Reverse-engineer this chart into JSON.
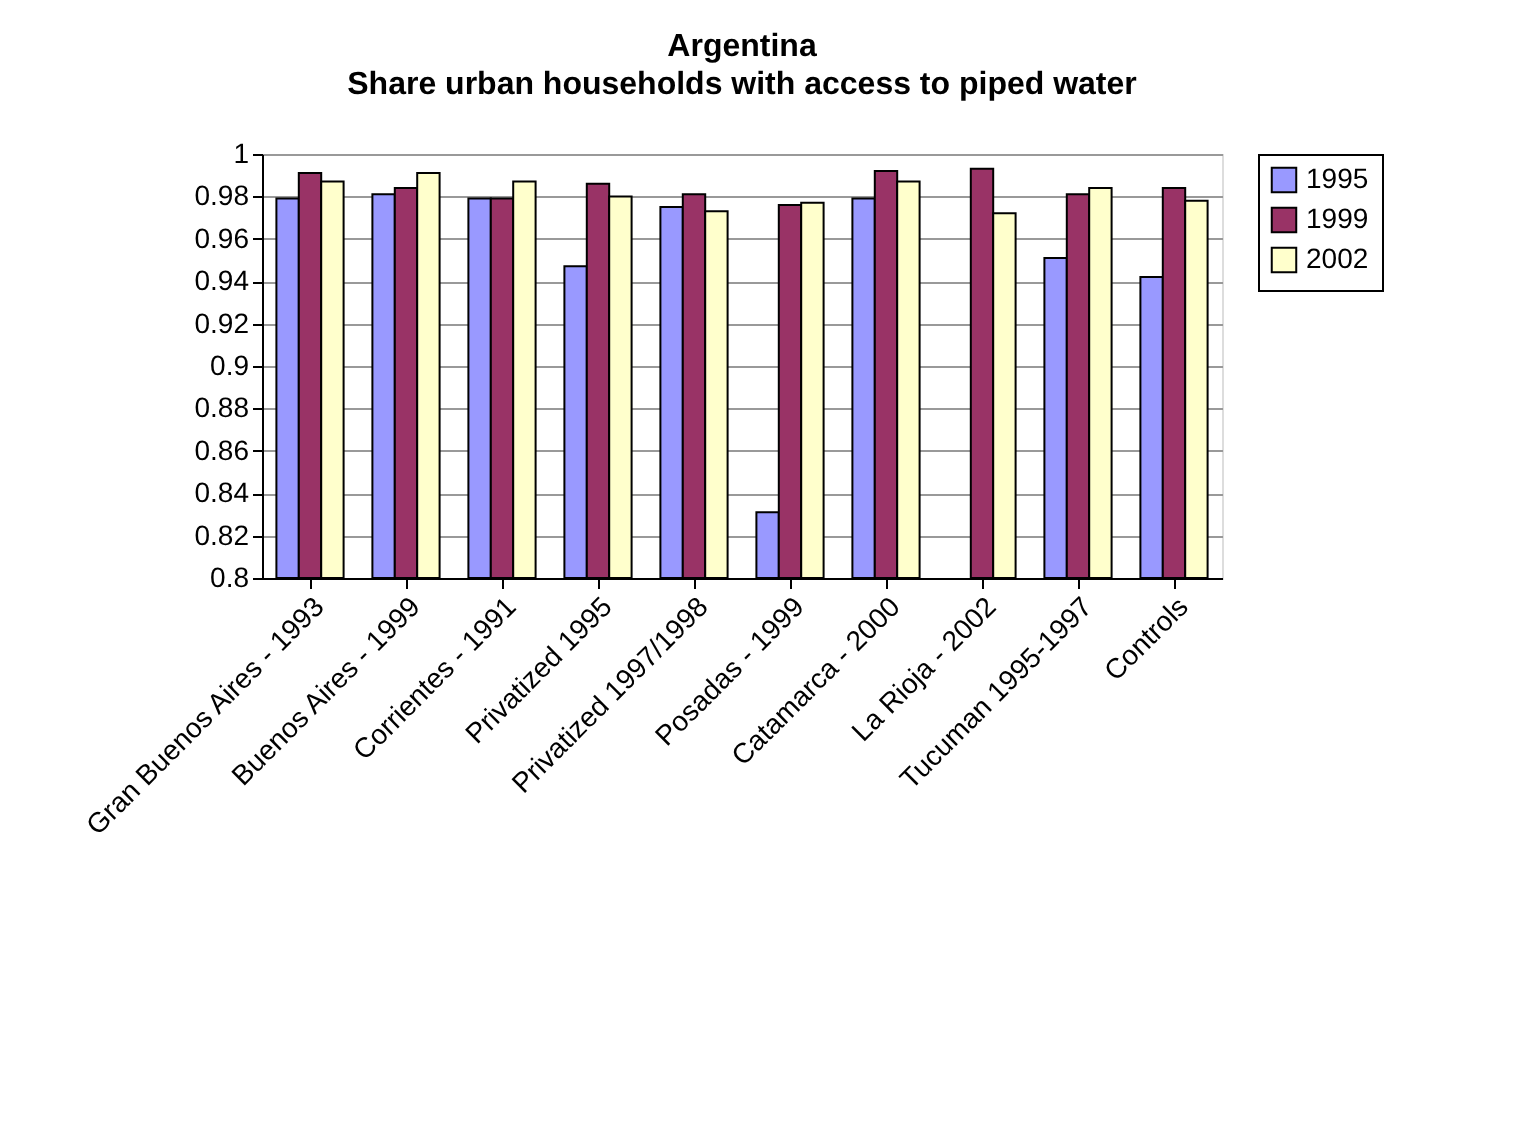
{
  "chart_data": {
    "type": "bar",
    "title": "Argentina",
    "subtitle": "Share urban households with access to piped water",
    "categories": [
      "Gran Buenos Aires - 1993",
      "Buenos Aires - 1999",
      "Corrientes - 1991",
      "Privatized 1995",
      "Privatized 1997/1998",
      "Posadas - 1999",
      "Catamarca - 2000",
      "La Rioja - 2002",
      "Tucuman 1995-1997",
      "Controls"
    ],
    "series": [
      {
        "name": "1995",
        "color": "#9999ff",
        "values": [
          0.979,
          0.981,
          0.979,
          0.947,
          0.975,
          0.831,
          0.979,
          null,
          0.951,
          0.942
        ]
      },
      {
        "name": "1999",
        "color": "#993366",
        "values": [
          0.991,
          0.984,
          0.979,
          0.986,
          0.981,
          0.976,
          0.992,
          0.993,
          0.981,
          0.984
        ]
      },
      {
        "name": "2002",
        "color": "#ffffcc",
        "values": [
          0.987,
          0.991,
          0.987,
          0.98,
          0.973,
          0.977,
          0.987,
          0.972,
          0.984,
          0.978
        ]
      }
    ],
    "ylim": [
      0.8,
      1
    ],
    "yticks": [
      0.8,
      0.82,
      0.84,
      0.86,
      0.88,
      0.9,
      0.92,
      0.94,
      0.96,
      0.98,
      1
    ],
    "grid": "y",
    "legend": "right"
  }
}
